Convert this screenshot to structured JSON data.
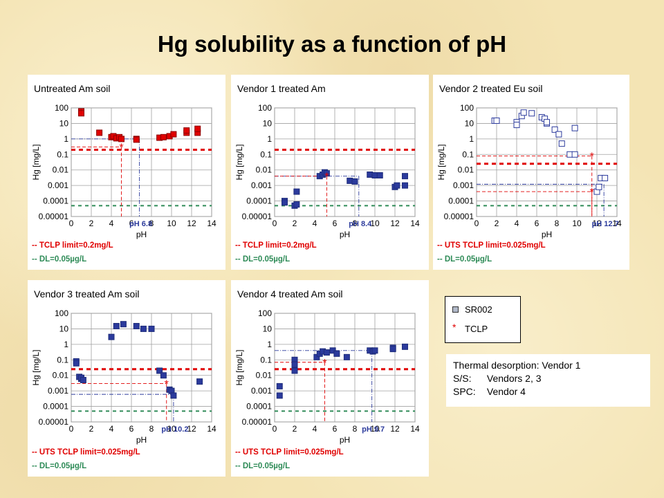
{
  "slide": {
    "title": "Hg solubility as a function of pH"
  },
  "legend": {
    "items": [
      {
        "marker": "square",
        "label": "SR002"
      },
      {
        "marker": "star",
        "label": "TCLP"
      }
    ]
  },
  "notes": [
    {
      "key": "Thermal desorption:",
      "value": "Vendor 1"
    },
    {
      "key": "S/S:",
      "value": "Vendors 2, 3"
    },
    {
      "key": "SPC:",
      "value": "Vendor 4"
    }
  ],
  "colors": {
    "red": "#e00000",
    "green": "#2e8b57",
    "blue": "#2b3a9c",
    "dark": "#1f2d7a",
    "open": "#ffffff"
  },
  "chart_data": [
    {
      "type": "scatter",
      "title": "Untreated Am soil",
      "xlabel": "pH",
      "ylabel": "Hg [mg/L]",
      "xlim": [
        0,
        14
      ],
      "ylim": [
        1e-05,
        100
      ],
      "yscale": "log",
      "xticks": [
        "0",
        "2",
        "4",
        "6",
        "8",
        "10",
        "12",
        "14"
      ],
      "yticks": [
        "100",
        "10",
        "1",
        "0.1",
        "0.01",
        "0.001",
        "0.0001",
        "0.00001"
      ],
      "grid": true,
      "marker_style": "red-filled",
      "series": [
        {
          "x": [
            1.0,
            1.0,
            2.8,
            4.0,
            4.2,
            4.5,
            4.8,
            5.0,
            6.5,
            6.5,
            8.8,
            9.2,
            9.8,
            10.2,
            11.5,
            11.5,
            12.6,
            12.6
          ],
          "y": [
            60,
            45,
            2.5,
            1.3,
            1.5,
            1.1,
            1.3,
            1.0,
            1.0,
            0.9,
            1.2,
            1.3,
            1.5,
            2.0,
            2.5,
            3.5,
            2.5,
            4.5
          ]
        }
      ],
      "tclp": {
        "x": 5.0,
        "y": 0.3
      },
      "reference_ph": 6.8,
      "ref_y": 1.0,
      "ph_label": "pH 6.8",
      "limit_y": 0.2,
      "limit_label": "-- TCLP limit=0.2mg/L",
      "dl_y": 5e-05,
      "dl_label": "-- DL=0.05µg/L"
    },
    {
      "type": "scatter",
      "title": "Vendor 1 treated Am",
      "xlabel": "pH",
      "ylabel": "Hg [mg/L]",
      "xlim": [
        0,
        14
      ],
      "ylim": [
        1e-05,
        100
      ],
      "yscale": "log",
      "xticks": [
        "0",
        "2",
        "4",
        "6",
        "8",
        "10",
        "12",
        "14"
      ],
      "yticks": [
        "100",
        "10",
        "1",
        "0.1",
        "0.01",
        "0.001",
        "0.0001",
        "0.00001"
      ],
      "grid": true,
      "marker_style": "blue-filled",
      "series": [
        {
          "x": [
            1.0,
            1.0,
            2.0,
            2.2,
            2.2,
            4.5,
            4.8,
            5.0,
            5.2,
            7.5,
            8.0,
            9.5,
            10.0,
            10.5,
            12.0,
            12.2,
            13.0,
            13.0
          ],
          "y": [
            0.0001,
            8e-05,
            5e-05,
            6e-05,
            0.0004,
            0.004,
            0.005,
            0.007,
            0.006,
            0.002,
            0.0018,
            0.005,
            0.0045,
            0.0045,
            0.0008,
            0.001,
            0.004,
            0.001
          ]
        }
      ],
      "tclp": {
        "x": 5.2,
        "y": 0.004
      },
      "reference_ph": 8.4,
      "ref_y": 0.004,
      "ph_label": "pH 8.4",
      "limit_y": 0.2,
      "limit_label": "-- TCLP limit=0.2mg/L",
      "dl_y": 5e-05,
      "dl_label": "-- DL=0.05µg/L"
    },
    {
      "type": "scatter",
      "title": "Vendor 2 treated Eu soil",
      "xlabel": "pH",
      "ylabel": "Hg [mg/L]",
      "xlim": [
        0,
        14
      ],
      "ylim": [
        1e-05,
        100
      ],
      "yscale": "log",
      "xticks": [
        "0",
        "2",
        "4",
        "6",
        "8",
        "10",
        "12",
        "14"
      ],
      "yticks": [
        "100",
        "10",
        "1",
        "0.1",
        "0.01",
        "0.001",
        "0.0001",
        "0.00001"
      ],
      "grid": true,
      "marker_style": "open",
      "series": [
        {
          "x": [
            1.8,
            2.0,
            4.0,
            4.0,
            4.5,
            4.7,
            5.5,
            6.5,
            6.8,
            7.0,
            7.0,
            7.8,
            8.2,
            8.5,
            9.3,
            9.8,
            9.8,
            12.0,
            12.2,
            12.4,
            12.8
          ],
          "y": [
            15,
            15,
            12,
            8,
            30,
            50,
            45,
            25,
            20,
            10,
            12,
            4,
            2,
            0.5,
            0.1,
            0.1,
            5,
            0.0004,
            0.0008,
            0.003,
            0.003
          ]
        }
      ],
      "tclp": [
        {
          "x": 11.5,
          "y": 0.08
        },
        {
          "x": 11.5,
          "y": 0.0004
        }
      ],
      "reference_ph": 12.7,
      "ref_y": 0.0012,
      "ph_label": "pH 12.7",
      "limit_y": 0.025,
      "limit_label": "-- UTS TCLP limit=0.025mg/L",
      "dl_y": 5e-05,
      "dl_label": "-- DL=0.05µg/L"
    },
    {
      "type": "scatter",
      "title": "Vendor 3 treated Am soil",
      "xlabel": "pH",
      "ylabel": "Hg [mg/L]",
      "xlim": [
        0,
        14
      ],
      "ylim": [
        1e-05,
        100
      ],
      "yscale": "log",
      "xticks": [
        "0",
        "2",
        "4",
        "6",
        "8",
        "10",
        "12",
        "14"
      ],
      "yticks": [
        "100",
        "10",
        "1",
        "0.1",
        "0.01",
        "0.001",
        "0.0001",
        "0.00001"
      ],
      "grid": true,
      "marker_style": "blue-filled",
      "series": [
        {
          "x": [
            0.5,
            0.5,
            0.8,
            1.0,
            1.0,
            1.2,
            4.0,
            4.5,
            5.2,
            6.5,
            7.2,
            8.0,
            8.8,
            9.2,
            9.8,
            10.0,
            10.2,
            12.8
          ],
          "y": [
            0.08,
            0.06,
            0.008,
            0.006,
            0.007,
            0.005,
            3,
            15,
            20,
            15,
            10,
            10,
            0.02,
            0.01,
            0.0012,
            0.001,
            0.0005,
            0.004
          ]
        }
      ],
      "tclp": {
        "x": 9.5,
        "y": 0.003
      },
      "reference_ph": 10.2,
      "ref_y": 0.0006,
      "ph_label": "pH 10.2",
      "limit_y": 0.025,
      "limit_label": "-- UTS TCLP limit=0.025mg/L",
      "dl_y": 5e-05,
      "dl_label": "-- DL=0.05µg/L"
    },
    {
      "type": "scatter",
      "title": "Vendor 4 treated Am soil",
      "xlabel": "pH",
      "ylabel": "Hg [mg/L]",
      "xlim": [
        0,
        14
      ],
      "ylim": [
        1e-05,
        100
      ],
      "yscale": "log",
      "xticks": [
        "0",
        "2",
        "4",
        "6",
        "8",
        "10",
        "12",
        "14"
      ],
      "yticks": [
        "100",
        "10",
        "1",
        "0.1",
        "0.01",
        "0.001",
        "0.0001",
        "0.00001"
      ],
      "grid": true,
      "marker_style": "blue-filled",
      "series": [
        {
          "x": [
            0.5,
            0.5,
            2.0,
            2.0,
            2.0,
            4.2,
            4.5,
            4.8,
            5.2,
            5.8,
            6.2,
            7.2,
            9.5,
            9.8,
            10.0,
            11.8,
            11.8,
            13.0
          ],
          "y": [
            0.002,
            0.0005,
            0.1,
            0.05,
            0.02,
            0.15,
            0.25,
            0.35,
            0.3,
            0.4,
            0.25,
            0.15,
            0.4,
            0.35,
            0.4,
            0.6,
            0.5,
            0.7
          ]
        }
      ],
      "tclp": {
        "x": 5.0,
        "y": 0.07
      },
      "reference_ph": 9.7,
      "ref_y": 0.4,
      "ph_label": "pH 9.7",
      "limit_y": 0.025,
      "limit_label": "-- UTS TCLP limit=0.025mg/L",
      "dl_y": 5e-05,
      "dl_label": "-- DL=0.05µg/L"
    }
  ]
}
